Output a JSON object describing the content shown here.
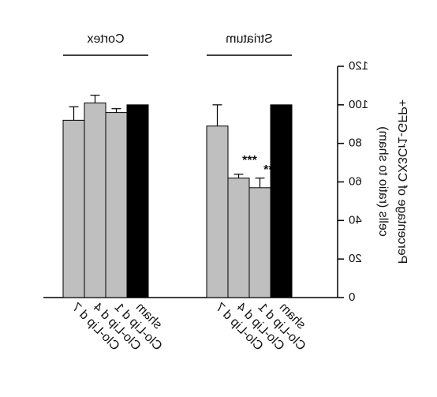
{
  "chart_data": {
    "type": "bar",
    "ylabel": [
      "Percentage of CX3Cr1-GFP+",
      "cells (ratio to sham)"
    ],
    "categories": [
      "Clo-Lip d 7",
      "Clo-Lip d 4",
      "Clo-Lip d 1",
      "sham"
    ],
    "colors": [
      "#bfbfbf",
      "#bfbfbf",
      "#bfbfbf",
      "#000000"
    ],
    "groups": [
      {
        "name": "Cortex",
        "values": [
          92,
          101,
          96,
          100
        ],
        "errors": [
          7,
          4,
          2,
          null
        ],
        "value_annotations": [
          null,
          null,
          null,
          null
        ]
      },
      {
        "name": "Striatum",
        "values": [
          89,
          62,
          57,
          100
        ],
        "errors": [
          11,
          2,
          5,
          null
        ],
        "value_annotations": [
          null,
          "***",
          "***",
          null
        ]
      }
    ],
    "ylim": [
      0,
      120
    ],
    "yticks": [
      0,
      20,
      40,
      60,
      80,
      100,
      120
    ],
    "grid": false,
    "mirrored": true
  }
}
